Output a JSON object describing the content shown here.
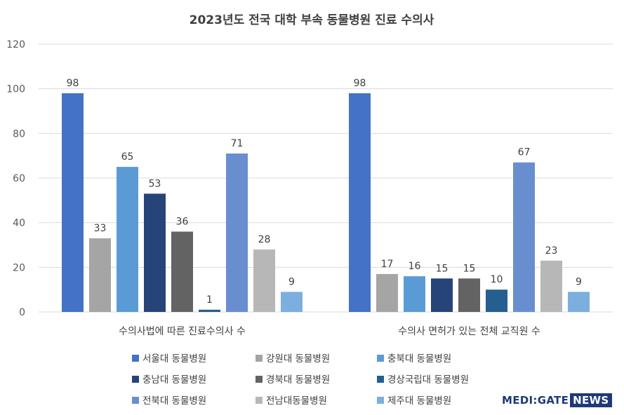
{
  "chart_data": {
    "type": "bar",
    "title": "2023년도 전국 대학 부속 동물병원 진료 수의사",
    "categories": [
      "수의사법에 따른 진료수의사 수",
      "수의사 면허가 있는 전체 교직원 수"
    ],
    "ylim": [
      0,
      120
    ],
    "yticks": [
      0,
      20,
      40,
      60,
      80,
      100,
      120
    ],
    "grid": true,
    "legend_position": "bottom",
    "series": [
      {
        "name": "서울대 동물병원",
        "values": [
          98,
          98
        ],
        "color": "#4472C4"
      },
      {
        "name": "강원대 동물병원",
        "values": [
          33,
          17
        ],
        "color": "#A5A5A5"
      },
      {
        "name": "충북대 동물병원",
        "values": [
          65,
          16
        ],
        "color": "#5B9BD5"
      },
      {
        "name": "충남대 동물병원",
        "values": [
          53,
          15
        ],
        "color": "#264478"
      },
      {
        "name": "경북대 동물병원",
        "values": [
          36,
          15
        ],
        "color": "#636363"
      },
      {
        "name": "경상국립대 동물병원",
        "values": [
          1,
          10
        ],
        "color": "#255E91"
      },
      {
        "name": "전북대 동물병원",
        "values": [
          71,
          67
        ],
        "color": "#698ED0"
      },
      {
        "name": "전남대동물병원",
        "values": [
          28,
          23
        ],
        "color": "#B7B7B7"
      },
      {
        "name": "제주대 동물병원",
        "values": [
          9,
          9
        ],
        "color": "#7CAFDD"
      }
    ]
  },
  "branding": {
    "logo_main": "MEDI:GATE",
    "logo_news": "NEWS"
  }
}
